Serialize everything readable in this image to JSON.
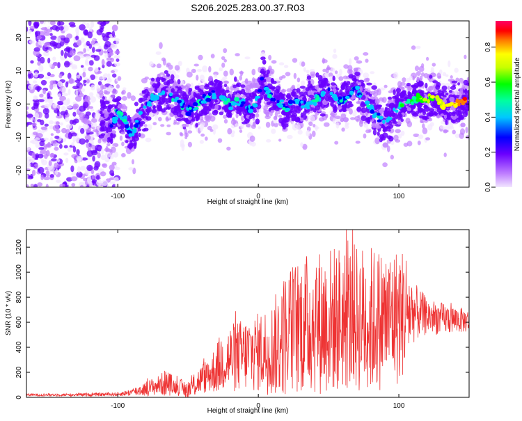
{
  "title": "S206.2025.283.00.37.R03",
  "chart_data": [
    {
      "type": "heatmap",
      "name": "spectrogram",
      "xlabel": "Height of straight line (km)",
      "ylabel": "Frequency (Hz)",
      "xlim": [
        -165,
        150
      ],
      "ylim": [
        -25,
        25
      ],
      "xticks": [
        -100,
        0,
        100
      ],
      "yticks": [
        -20,
        -10,
        0,
        10,
        20
      ],
      "ridge": {
        "x": [
          -110,
          -105,
          -100,
          -95,
          -90,
          -85,
          -80,
          -75,
          -70,
          -65,
          -60,
          -55,
          -50,
          -45,
          -40,
          -35,
          -30,
          -25,
          -20,
          -15,
          -10,
          -5,
          0,
          3,
          6,
          10,
          15,
          20,
          25,
          30,
          35,
          40,
          45,
          50,
          55,
          60,
          65,
          70,
          75,
          80,
          85,
          90,
          95,
          100,
          105,
          110,
          115,
          120,
          125,
          130,
          135,
          140,
          145
        ],
        "freq": [
          -4,
          -7,
          -2,
          -5,
          -10,
          -4,
          -1,
          2,
          3,
          4,
          1,
          0,
          -2,
          -1,
          1,
          2,
          3,
          2,
          0,
          1,
          0,
          -2,
          2,
          8,
          4,
          2,
          0,
          -2,
          1,
          0,
          0,
          1,
          3,
          4,
          2,
          1,
          3,
          5,
          1,
          -1,
          -4,
          -6,
          -3,
          -1,
          0,
          1,
          2,
          1,
          2,
          0,
          -1,
          0,
          1
        ]
      },
      "colorbar": {
        "label": "Normalized spectral amplitude",
        "ticks": [
          0.0,
          0.2,
          0.4,
          0.6,
          0.8
        ],
        "tick_labels": [
          "0.0",
          "0.2",
          "0.4",
          "0.6",
          "0.8"
        ],
        "range": [
          0,
          0.95
        ]
      }
    },
    {
      "type": "line",
      "name": "snr",
      "xlabel": "Height of straight line (km)",
      "ylabel": "SNR (10 * v/v)",
      "xlim": [
        -165,
        150
      ],
      "ylim": [
        0,
        1340
      ],
      "xticks": [
        -100,
        0,
        100
      ],
      "yticks": [
        0,
        200,
        400,
        600,
        800,
        1000,
        1200
      ],
      "color": "#ee3333",
      "envelope": {
        "x": [
          -165,
          -130,
          -100,
          -90,
          -80,
          -70,
          -65,
          -60,
          -50,
          -40,
          -35,
          -30,
          -25,
          -20,
          -10,
          0,
          10,
          15,
          20,
          30,
          40,
          50,
          60,
          70,
          80,
          90,
          100,
          105,
          110,
          120,
          130,
          140,
          150
        ],
        "mean": [
          20,
          20,
          25,
          40,
          70,
          100,
          120,
          90,
          60,
          150,
          180,
          230,
          300,
          310,
          340,
          360,
          390,
          450,
          520,
          580,
          600,
          610,
          640,
          630,
          620,
          630,
          650,
          700,
          680,
          650,
          630,
          620,
          610
        ],
        "spread": [
          10,
          12,
          15,
          30,
          60,
          80,
          120,
          60,
          80,
          120,
          150,
          200,
          260,
          280,
          300,
          320,
          380,
          450,
          520,
          560,
          580,
          600,
          600,
          600,
          600,
          560,
          560,
          500,
          250,
          150,
          130,
          110,
          90
        ]
      }
    }
  ]
}
